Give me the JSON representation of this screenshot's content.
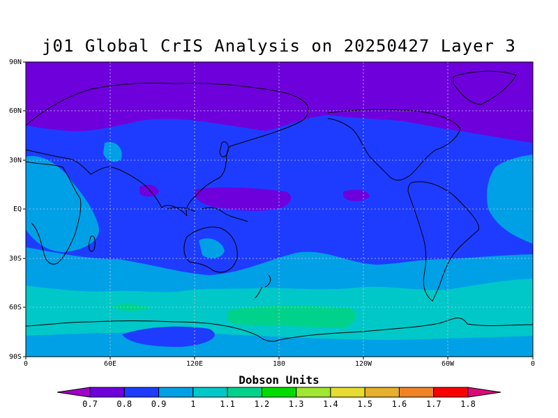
{
  "title": "j01 Global CrIS Analysis on 20250427 Layer 3",
  "colorbar": {
    "title": "Dobson Units",
    "labels": [
      "0.7",
      "0.8",
      "0.9",
      "1",
      "1.1",
      "1.2",
      "1.3",
      "1.4",
      "1.5",
      "1.6",
      "1.7",
      "1.8"
    ],
    "colors": [
      "#a000c8",
      "#6e00dc",
      "#1e3cff",
      "#00a0e6",
      "#00c8c8",
      "#00d28c",
      "#00dc00",
      "#a0e632",
      "#e6dc32",
      "#e6af2d",
      "#f08228",
      "#fa0000",
      "#dc0a78"
    ]
  },
  "chart_data": {
    "type": "heatmap",
    "title": "j01 Global CrIS Analysis on 20250427 Layer 3",
    "units": "Dobson Units",
    "x_ticks": [
      "0",
      "60E",
      "120E",
      "180",
      "120W",
      "60W",
      "0"
    ],
    "y_ticks": [
      "90N",
      "60N",
      "30N",
      "EQ",
      "30S",
      "60S",
      "90S"
    ],
    "lon_range": [
      0,
      360
    ],
    "lat_range": [
      -90,
      90
    ],
    "grid": true,
    "bands": [
      {
        "lat_from": 90,
        "lat_to": 55,
        "value": 0.8
      },
      {
        "lat_from": 55,
        "lat_to": -25,
        "value": 0.9
      },
      {
        "lat_from": -25,
        "lat_to": -45,
        "value": 1.0
      },
      {
        "lat_from": -45,
        "lat_to": -62,
        "value": 1.1
      },
      {
        "lat_from": -62,
        "lat_to": -72,
        "value": 1.2
      },
      {
        "lat_from": -72,
        "lat_to": -90,
        "value": 1.0
      }
    ]
  }
}
